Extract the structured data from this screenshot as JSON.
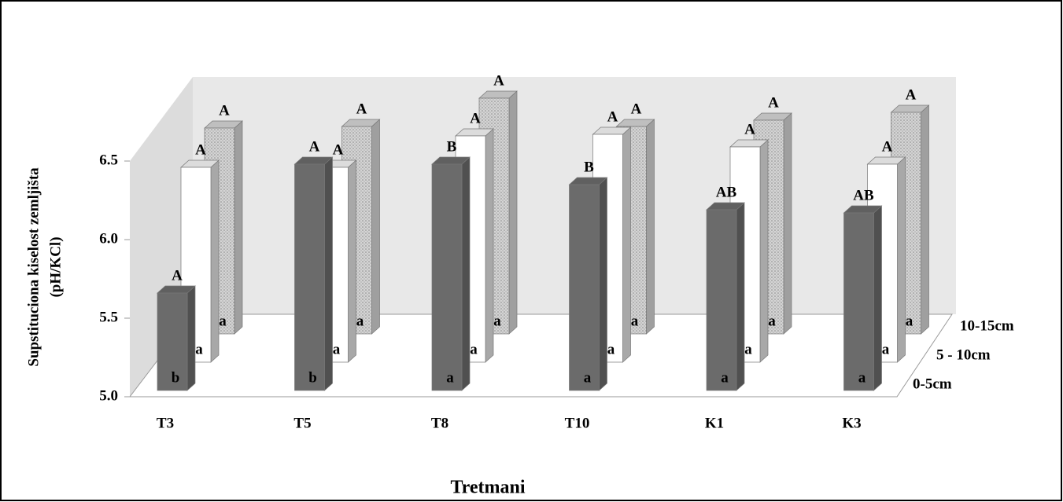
{
  "chart_data": {
    "type": "bar3d",
    "y_label": [
      "Supstituciona kiselost zemljišta",
      "(pH/KCl)"
    ],
    "x_label": "Tretmani",
    "categories": [
      "T3",
      "T5",
      "T8",
      "T10",
      "K1",
      "K3"
    ],
    "ylim": [
      5,
      6.5
    ],
    "yticks": [
      {
        "value": 5,
        "label": "5.0"
      },
      {
        "value": 5.5,
        "label": "5.5"
      },
      {
        "value": 6,
        "label": "6.0"
      },
      {
        "value": 6.5,
        "label": "6.5"
      }
    ],
    "series": [
      {
        "name": "0-5cm",
        "color": "#6b6b6b",
        "values": [
          5.62,
          6.44,
          6.44,
          6.31,
          6.15,
          6.13
        ],
        "upper_letters": [
          "A",
          "A",
          "B",
          "B",
          "AB",
          "AB"
        ],
        "lower_letters": [
          "b",
          "b",
          "a",
          "a",
          "a",
          "a"
        ]
      },
      {
        "name": "5 - 10cm",
        "color": "#ffffff",
        "values": [
          6.24,
          6.24,
          6.44,
          6.45,
          6.37,
          6.26
        ],
        "upper_letters": [
          "A",
          "A",
          "A",
          "A",
          "A",
          "A"
        ],
        "lower_letters": [
          "a",
          "a",
          "a",
          "a",
          "a",
          "a"
        ]
      },
      {
        "name": "10-15cm",
        "color": "#d4d4d4",
        "pattern": "dots",
        "values": [
          6.31,
          6.32,
          6.5,
          6.32,
          6.36,
          6.41
        ],
        "upper_letters": [
          "A",
          "A",
          "A",
          "A",
          "A",
          "A"
        ],
        "lower_letters": [
          "a",
          "a",
          "a",
          "a",
          "a",
          "a"
        ]
      }
    ]
  }
}
